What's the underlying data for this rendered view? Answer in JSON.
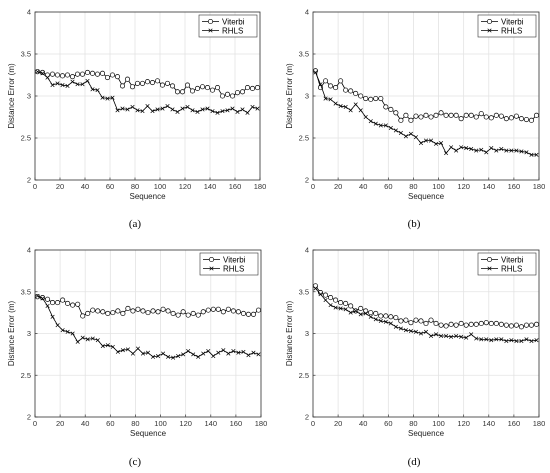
{
  "chart_data": [
    {
      "type": "line",
      "caption": "(a)",
      "xlabel": "Sequence",
      "ylabel": "Distance Error (m)",
      "xlim": [
        0,
        180
      ],
      "ylim": [
        2,
        4
      ],
      "xticks": [
        "0",
        "20",
        "40",
        "60",
        "80",
        "100",
        "120",
        "140",
        "160",
        "180"
      ],
      "yticks": [
        "2",
        "2.5",
        "3",
        "3.5",
        "4"
      ],
      "grid": true,
      "legend": "top-right",
      "series": [
        {
          "name": "Viterbi",
          "marker": "circle",
          "x": [
            2,
            6,
            10,
            14,
            18,
            22,
            26,
            30,
            34,
            38,
            42,
            46,
            50,
            54,
            58,
            62,
            66,
            70,
            74,
            78,
            82,
            86,
            90,
            94,
            98,
            102,
            106,
            110,
            114,
            118,
            122,
            126,
            130,
            134,
            138,
            142,
            146,
            150,
            154,
            158,
            162,
            166,
            170,
            174,
            178
          ],
          "y": [
            3.29,
            3.28,
            3.25,
            3.26,
            3.25,
            3.24,
            3.25,
            3.23,
            3.26,
            3.26,
            3.28,
            3.27,
            3.26,
            3.27,
            3.22,
            3.25,
            3.23,
            3.12,
            3.2,
            3.11,
            3.15,
            3.15,
            3.17,
            3.16,
            3.18,
            3.13,
            3.15,
            3.12,
            3.05,
            3.05,
            3.13,
            3.06,
            3.09,
            3.11,
            3.1,
            3.07,
            3.1,
            3.0,
            3.02,
            3.0,
            3.04,
            3.05,
            3.1,
            3.09,
            3.1
          ]
        },
        {
          "name": "RHLS",
          "marker": "x",
          "x": [
            2,
            6,
            10,
            14,
            18,
            22,
            26,
            30,
            34,
            38,
            42,
            46,
            50,
            54,
            58,
            62,
            66,
            70,
            74,
            78,
            82,
            86,
            90,
            94,
            98,
            102,
            106,
            110,
            114,
            118,
            122,
            126,
            130,
            134,
            138,
            142,
            146,
            150,
            154,
            158,
            162,
            166,
            170,
            174,
            178
          ],
          "y": [
            3.29,
            3.27,
            3.22,
            3.13,
            3.15,
            3.13,
            3.12,
            3.17,
            3.14,
            3.14,
            3.18,
            3.08,
            3.07,
            2.98,
            2.97,
            2.98,
            2.83,
            2.85,
            2.84,
            2.87,
            2.83,
            2.82,
            2.88,
            2.82,
            2.84,
            2.85,
            2.88,
            2.84,
            2.81,
            2.85,
            2.87,
            2.83,
            2.81,
            2.84,
            2.85,
            2.82,
            2.8,
            2.82,
            2.83,
            2.85,
            2.81,
            2.84,
            2.8,
            2.87,
            2.85
          ]
        }
      ]
    },
    {
      "type": "line",
      "caption": "(b)",
      "xlabel": "Sequence",
      "ylabel": "Distance Error (m)",
      "xlim": [
        0,
        180
      ],
      "ylim": [
        2,
        4
      ],
      "xticks": [
        "0",
        "20",
        "40",
        "60",
        "80",
        "100",
        "120",
        "140",
        "160",
        "180"
      ],
      "yticks": [
        "2",
        "2.5",
        "3",
        "3.5",
        "4"
      ],
      "grid": true,
      "legend": "top-right",
      "series": [
        {
          "name": "Viterbi",
          "marker": "circle",
          "x": [
            2,
            6,
            10,
            14,
            18,
            22,
            26,
            30,
            34,
            38,
            42,
            46,
            50,
            54,
            58,
            62,
            66,
            70,
            74,
            78,
            82,
            86,
            90,
            94,
            98,
            102,
            106,
            110,
            114,
            118,
            122,
            126,
            130,
            134,
            138,
            142,
            146,
            150,
            154,
            158,
            162,
            166,
            170,
            174,
            178
          ],
          "y": [
            3.3,
            3.1,
            3.18,
            3.12,
            3.1,
            3.18,
            3.07,
            3.06,
            3.03,
            3.0,
            2.97,
            2.96,
            2.97,
            2.97,
            2.87,
            2.84,
            2.8,
            2.71,
            2.77,
            2.71,
            2.76,
            2.75,
            2.77,
            2.75,
            2.77,
            2.8,
            2.77,
            2.77,
            2.77,
            2.73,
            2.77,
            2.77,
            2.75,
            2.79,
            2.75,
            2.74,
            2.77,
            2.76,
            2.73,
            2.74,
            2.76,
            2.73,
            2.72,
            2.71,
            2.77
          ]
        },
        {
          "name": "RHLS",
          "marker": "x",
          "x": [
            2,
            6,
            10,
            14,
            18,
            22,
            26,
            30,
            34,
            38,
            42,
            46,
            50,
            54,
            58,
            62,
            66,
            70,
            74,
            78,
            82,
            86,
            90,
            94,
            98,
            102,
            106,
            110,
            114,
            118,
            122,
            126,
            130,
            134,
            138,
            142,
            146,
            150,
            154,
            158,
            162,
            166,
            170,
            174,
            178
          ],
          "y": [
            3.28,
            3.14,
            2.97,
            2.96,
            2.91,
            2.88,
            2.87,
            2.83,
            2.9,
            2.83,
            2.75,
            2.7,
            2.67,
            2.65,
            2.65,
            2.62,
            2.59,
            2.56,
            2.52,
            2.55,
            2.51,
            2.44,
            2.47,
            2.47,
            2.43,
            2.44,
            2.32,
            2.39,
            2.35,
            2.39,
            2.38,
            2.37,
            2.35,
            2.36,
            2.33,
            2.38,
            2.35,
            2.37,
            2.35,
            2.35,
            2.35,
            2.34,
            2.33,
            2.3,
            2.3
          ]
        }
      ]
    },
    {
      "type": "line",
      "caption": "(c)",
      "xlabel": "Sequence",
      "ylabel": "Distance Error (m)",
      "xlim": [
        0,
        180
      ],
      "ylim": [
        2,
        4
      ],
      "xticks": [
        "0",
        "20",
        "40",
        "60",
        "80",
        "100",
        "120",
        "140",
        "160",
        "180"
      ],
      "yticks": [
        "2",
        "2.5",
        "3",
        "3.5",
        "4"
      ],
      "grid": true,
      "legend": "top-right",
      "series": [
        {
          "name": "Viterbi",
          "marker": "circle",
          "x": [
            2,
            6,
            10,
            14,
            18,
            22,
            26,
            30,
            34,
            38,
            42,
            46,
            50,
            54,
            58,
            62,
            66,
            70,
            74,
            78,
            82,
            86,
            90,
            94,
            98,
            102,
            106,
            110,
            114,
            118,
            122,
            126,
            130,
            134,
            138,
            142,
            146,
            150,
            154,
            158,
            162,
            166,
            170,
            174,
            178
          ],
          "y": [
            3.44,
            3.43,
            3.41,
            3.37,
            3.37,
            3.4,
            3.36,
            3.34,
            3.35,
            3.21,
            3.24,
            3.28,
            3.27,
            3.26,
            3.24,
            3.25,
            3.27,
            3.24,
            3.3,
            3.27,
            3.29,
            3.27,
            3.25,
            3.27,
            3.26,
            3.29,
            3.27,
            3.24,
            3.22,
            3.26,
            3.22,
            3.24,
            3.22,
            3.26,
            3.28,
            3.29,
            3.29,
            3.26,
            3.29,
            3.27,
            3.26,
            3.24,
            3.23,
            3.23,
            3.28
          ]
        },
        {
          "name": "RHLS",
          "marker": "x",
          "x": [
            2,
            6,
            10,
            14,
            18,
            22,
            26,
            30,
            34,
            38,
            42,
            46,
            50,
            54,
            58,
            62,
            66,
            70,
            74,
            78,
            82,
            86,
            90,
            94,
            98,
            102,
            106,
            110,
            114,
            118,
            122,
            126,
            130,
            134,
            138,
            142,
            146,
            150,
            154,
            158,
            162,
            166,
            170,
            174,
            178
          ],
          "y": [
            3.45,
            3.42,
            3.33,
            3.2,
            3.1,
            3.04,
            3.02,
            3.0,
            2.9,
            2.95,
            2.93,
            2.94,
            2.92,
            2.85,
            2.86,
            2.84,
            2.78,
            2.8,
            2.81,
            2.76,
            2.82,
            2.76,
            2.77,
            2.72,
            2.73,
            2.76,
            2.72,
            2.71,
            2.73,
            2.75,
            2.79,
            2.75,
            2.72,
            2.76,
            2.79,
            2.73,
            2.77,
            2.8,
            2.76,
            2.79,
            2.77,
            2.78,
            2.74,
            2.77,
            2.75
          ]
        }
      ]
    },
    {
      "type": "line",
      "caption": "(d)",
      "xlabel": "Sequence",
      "ylabel": "Distance Error (m)",
      "xlim": [
        0,
        180
      ],
      "ylim": [
        2,
        4
      ],
      "xticks": [
        "0",
        "20",
        "40",
        "60",
        "80",
        "100",
        "120",
        "140",
        "160",
        "180"
      ],
      "yticks": [
        "2",
        "2.5",
        "3",
        "3.5",
        "4"
      ],
      "grid": true,
      "legend": "top-right",
      "series": [
        {
          "name": "Viterbi",
          "marker": "circle",
          "x": [
            2,
            6,
            10,
            14,
            18,
            22,
            26,
            30,
            34,
            38,
            42,
            46,
            50,
            54,
            58,
            62,
            66,
            70,
            74,
            78,
            82,
            86,
            90,
            94,
            98,
            102,
            106,
            110,
            114,
            118,
            122,
            126,
            130,
            134,
            138,
            142,
            146,
            150,
            154,
            158,
            162,
            166,
            170,
            174,
            178
          ],
          "y": [
            3.57,
            3.49,
            3.46,
            3.43,
            3.4,
            3.37,
            3.36,
            3.33,
            3.27,
            3.3,
            3.27,
            3.25,
            3.24,
            3.21,
            3.21,
            3.2,
            3.19,
            3.15,
            3.16,
            3.13,
            3.16,
            3.15,
            3.12,
            3.16,
            3.12,
            3.1,
            3.09,
            3.11,
            3.1,
            3.12,
            3.1,
            3.11,
            3.11,
            3.12,
            3.13,
            3.12,
            3.12,
            3.11,
            3.1,
            3.09,
            3.1,
            3.08,
            3.1,
            3.1,
            3.11
          ]
        },
        {
          "name": "RHLS",
          "marker": "x",
          "x": [
            2,
            6,
            10,
            14,
            18,
            22,
            26,
            30,
            34,
            38,
            42,
            46,
            50,
            54,
            58,
            62,
            66,
            70,
            74,
            78,
            82,
            86,
            90,
            94,
            98,
            102,
            106,
            110,
            114,
            118,
            122,
            126,
            130,
            134,
            138,
            142,
            146,
            150,
            154,
            158,
            162,
            166,
            170,
            174,
            178
          ],
          "y": [
            3.54,
            3.47,
            3.4,
            3.34,
            3.31,
            3.3,
            3.29,
            3.25,
            3.27,
            3.23,
            3.24,
            3.2,
            3.17,
            3.15,
            3.14,
            3.12,
            3.08,
            3.06,
            3.04,
            3.03,
            3.02,
            3.0,
            3.02,
            2.97,
            2.99,
            2.97,
            2.97,
            2.96,
            2.97,
            2.96,
            2.95,
            2.99,
            2.94,
            2.93,
            2.93,
            2.92,
            2.93,
            2.93,
            2.91,
            2.92,
            2.91,
            2.91,
            2.93,
            2.91,
            2.92
          ]
        }
      ]
    }
  ]
}
